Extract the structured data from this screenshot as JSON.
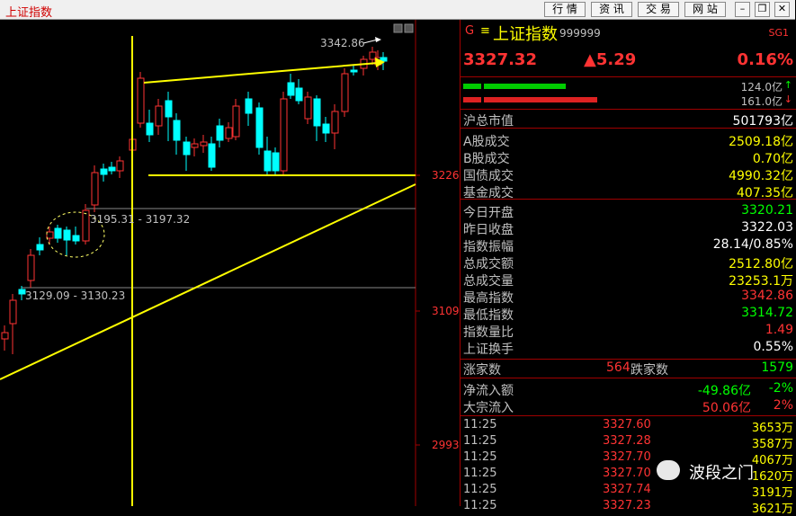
{
  "window": {
    "title": "上证指数",
    "menu": [
      "行 情",
      "资 讯",
      "交 易",
      "网 站"
    ]
  },
  "chart": {
    "price_labels": [
      "3226",
      "3109",
      "2993"
    ],
    "annotations": {
      "high": "3342.86",
      "gap1": "3195.31 - 3197.32",
      "gap2": "3129.09 - 3130.23"
    }
  },
  "quote": {
    "market_flag": "G",
    "name": "上证指数",
    "code": "999999",
    "tag": "SG1",
    "price": "3327.32",
    "change": "▲5.29",
    "change_pct": "0.16%",
    "buy_volume": "124.0亿",
    "sell_volume": "161.0亿"
  },
  "stats": [
    {
      "label": "沪总市值",
      "value": "501793亿",
      "color": "white"
    },
    {
      "label": "A股成交",
      "value": "2509.18亿",
      "color": "yellow"
    },
    {
      "label": "B股成交",
      "value": "0.70亿",
      "color": "yellow"
    },
    {
      "label": "国债成交",
      "value": "4990.32亿",
      "color": "yellow"
    },
    {
      "label": "基金成交",
      "value": "407.35亿",
      "color": "yellow"
    },
    {
      "label": "今日开盘",
      "value": "3320.21",
      "color": "green"
    },
    {
      "label": "昨日收盘",
      "value": "3322.03",
      "color": "white"
    },
    {
      "label": "指数振幅",
      "value": "28.14/0.85%",
      "color": "white"
    },
    {
      "label": "总成交额",
      "value": "2512.80亿",
      "color": "yellow"
    },
    {
      "label": "总成交量",
      "value": "23253.1万",
      "color": "yellow"
    },
    {
      "label": "最高指数",
      "value": "3342.86",
      "color": "red"
    },
    {
      "label": "最低指数",
      "value": "3314.72",
      "color": "green"
    },
    {
      "label": "指数量比",
      "value": "1.49",
      "color": "red"
    },
    {
      "label": "上证换手",
      "value": "0.55%",
      "color": "white"
    }
  ],
  "breadth": {
    "up_label": "涨家数",
    "up": "564",
    "down_label": "跌家数",
    "down": "1579"
  },
  "flows": [
    {
      "label": "净流入额",
      "value": "-49.86亿",
      "pct": "-2%",
      "color": "green"
    },
    {
      "label": "大宗流入",
      "value": "50.06亿",
      "pct": "2%",
      "color": "red"
    }
  ],
  "trades": [
    {
      "time": "11:25",
      "price": "3327.60",
      "vol": "3653万"
    },
    {
      "time": "11:25",
      "price": "3327.28",
      "vol": "3587万"
    },
    {
      "time": "11:25",
      "price": "3327.70",
      "vol": "4067万"
    },
    {
      "time": "11:25",
      "price": "3327.70",
      "vol": "1620万"
    },
    {
      "time": "11:25",
      "price": "3327.74",
      "vol": "3191万"
    },
    {
      "time": "11:25",
      "price": "3327.23",
      "vol": "3621万"
    }
  ],
  "watermark": "波段之门",
  "colors": {
    "up": "#ff3333",
    "down": "#00ffff",
    "trend": "#ffff00",
    "frame": "#a00000"
  }
}
